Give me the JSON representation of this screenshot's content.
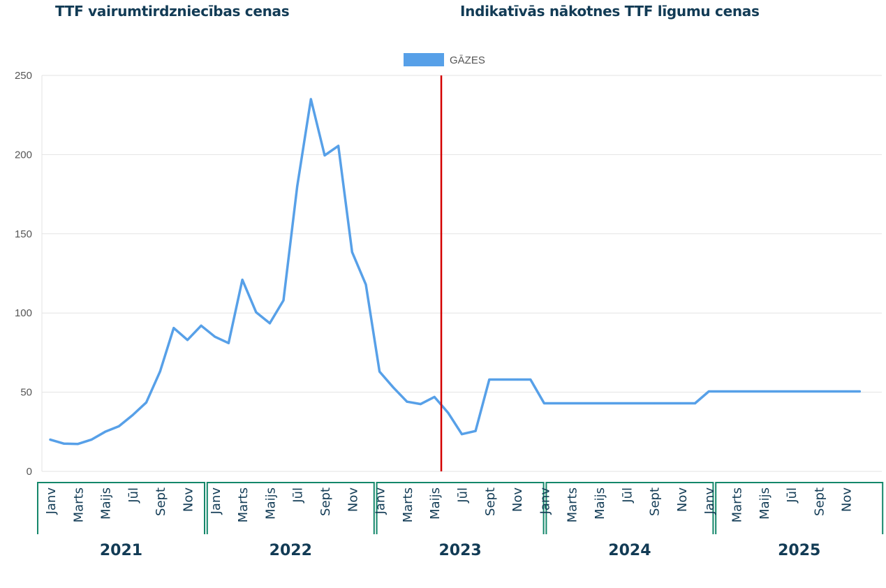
{
  "headings": {
    "left": "TTF vairumtirdzniecības cenas",
    "right": "Indikatīvās nākotnes TTF līgumu cenas"
  },
  "colors": {
    "series": "#57a0e8",
    "divider": "#d40000",
    "grid": "#e3e3e3",
    "year_box": "#14876a",
    "text": "#123b55"
  },
  "chart_data": {
    "type": "line",
    "ylim": [
      0,
      250
    ],
    "y_ticks": [
      0,
      50,
      100,
      150,
      200,
      250
    ],
    "grid": true,
    "legend_position": "top-center",
    "series": [
      {
        "name": "GĀZES",
        "x": [
          "2021-01",
          "2021-02",
          "2021-03",
          "2021-04",
          "2021-05",
          "2021-06",
          "2021-07",
          "2021-08",
          "2021-09",
          "2021-10",
          "2021-11",
          "2021-12",
          "2022-01",
          "2022-02",
          "2022-03",
          "2022-04",
          "2022-05",
          "2022-06",
          "2022-07",
          "2022-08",
          "2022-09",
          "2022-10",
          "2022-11",
          "2022-12",
          "2023-01",
          "2023-02",
          "2023-03",
          "2023-04",
          "2023-05",
          "2023-06",
          "2023-07",
          "2023-08",
          "2023-09",
          "2023-10",
          "2023-11",
          "2023-12",
          "2024-01",
          "2024-02",
          "2024-03",
          "2024-04",
          "2024-05",
          "2024-06",
          "2024-07",
          "2024-08",
          "2024-09",
          "2024-10",
          "2024-11",
          "2024-12",
          "2025-01",
          "2025-02",
          "2025-03",
          "2025-04",
          "2025-05",
          "2025-06",
          "2025-07",
          "2025-08",
          "2025-09",
          "2025-10",
          "2025-11",
          "2025-12"
        ],
        "values": [
          20,
          17.5,
          17.3,
          20,
          25,
          28.5,
          35.5,
          43.5,
          63,
          90.5,
          83,
          92,
          85,
          81,
          121,
          100.5,
          93.5,
          108,
          180,
          235,
          199.5,
          205.5,
          138.5,
          118,
          63,
          53,
          44,
          42.5,
          47,
          37,
          23.5,
          25.5,
          58,
          58,
          58,
          58,
          43,
          43,
          43,
          43,
          43,
          43,
          43,
          43,
          43,
          43,
          43,
          43,
          50.5,
          50.5,
          50.5,
          50.5,
          50.5,
          50.5,
          50.5,
          50.5,
          50.5,
          50.5,
          50.5,
          50.5
        ]
      }
    ],
    "divider_at": "2023-05",
    "month_labels": [
      "Janv",
      "Marts",
      "Maijs",
      "Jūl",
      "Sept",
      "Nov"
    ],
    "years": [
      "2021",
      "2022",
      "2023",
      "2024",
      "2025"
    ]
  }
}
